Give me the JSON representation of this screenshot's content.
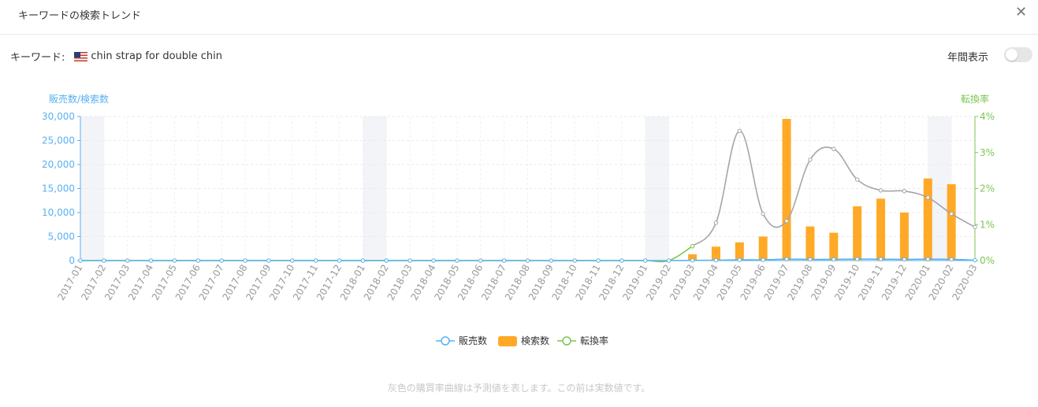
{
  "header": {
    "title": "キーワードの検索トレンド",
    "close_label": "✕"
  },
  "keyword": {
    "label": "キーワード:",
    "flag": "us-flag-icon",
    "value": "chin strap for double chin"
  },
  "toggle": {
    "label": "年間表示",
    "on": false
  },
  "note": "灰色の購買率曲線は予測値を表します。この前は実数値です。",
  "colors": {
    "sales": "#5ab1ef",
    "search": "#ffa927",
    "conversion": "#7cc651",
    "forecast": "#a5a5a5",
    "band": "#f2f4f8"
  },
  "chart_data": {
    "type": "bar",
    "left_axis_title": "販売数/検索数",
    "right_axis_title": "転換率",
    "categories": [
      "2017-01",
      "2017-02",
      "2017-03",
      "2017-04",
      "2017-05",
      "2017-06",
      "2017-07",
      "2017-08",
      "2017-09",
      "2017-10",
      "2017-11",
      "2017-12",
      "2018-01",
      "2018-02",
      "2018-03",
      "2018-04",
      "2018-05",
      "2018-06",
      "2018-07",
      "2018-08",
      "2018-09",
      "2018-10",
      "2018-11",
      "2018-12",
      "2019-01",
      "2019-02",
      "2019-03",
      "2019-04",
      "2019-05",
      "2019-06",
      "2019-07",
      "2019-08",
      "2019-09",
      "2019-10",
      "2019-11",
      "2019-12",
      "2020-01",
      "2020-02",
      "2020-03"
    ],
    "y_left": {
      "min": 0,
      "max": 30000,
      "ticks": [
        "0",
        "5,000",
        "10,000",
        "15,000",
        "20,000",
        "25,000",
        "30,000"
      ]
    },
    "y_right": {
      "min": 0,
      "max": 4,
      "ticks": [
        "0%",
        "1%",
        "2%",
        "3%",
        "4%"
      ]
    },
    "year_start_bands": [
      "2017-01",
      "2018-01",
      "2019-01",
      "2020-01"
    ],
    "legend": [
      "販売数",
      "検索数",
      "転換率"
    ],
    "series": [
      {
        "name": "販売数",
        "type": "line",
        "axis": "left",
        "values": [
          0,
          0,
          0,
          0,
          0,
          0,
          0,
          0,
          0,
          0,
          0,
          0,
          0,
          0,
          0,
          0,
          0,
          0,
          0,
          0,
          0,
          0,
          0,
          0,
          0,
          0,
          40,
          80,
          150,
          150,
          300,
          250,
          250,
          300,
          300,
          250,
          300,
          250,
          80
        ]
      },
      {
        "name": "検索数",
        "type": "bar",
        "axis": "left",
        "values": [
          0,
          0,
          0,
          0,
          0,
          0,
          0,
          0,
          0,
          0,
          0,
          0,
          0,
          0,
          0,
          0,
          0,
          0,
          0,
          0,
          0,
          0,
          0,
          0,
          0,
          0,
          1300,
          2900,
          3800,
          5000,
          29500,
          7100,
          5800,
          11300,
          12900,
          10000,
          17100,
          15900,
          0
        ]
      },
      {
        "name": "転換率",
        "type": "line",
        "axis": "right",
        "values": [
          0,
          0,
          0,
          0,
          0,
          0,
          0,
          0,
          0,
          0,
          0,
          0,
          0,
          0,
          0,
          0,
          0,
          0,
          0,
          0,
          0,
          0,
          0,
          0,
          0,
          0,
          0.4,
          null,
          null,
          null,
          null,
          null,
          null,
          null,
          null,
          null,
          null,
          null,
          null
        ]
      },
      {
        "name": "forecast",
        "type": "line",
        "axis": "right",
        "dashed": false,
        "values": [
          null,
          null,
          null,
          null,
          null,
          null,
          null,
          null,
          null,
          null,
          null,
          null,
          null,
          null,
          null,
          null,
          null,
          null,
          null,
          null,
          null,
          null,
          null,
          null,
          null,
          null,
          0.4,
          1.05,
          3.6,
          1.3,
          1.1,
          2.8,
          3.1,
          2.25,
          1.95,
          1.93,
          1.75,
          1.3,
          0.93
        ]
      }
    ]
  }
}
